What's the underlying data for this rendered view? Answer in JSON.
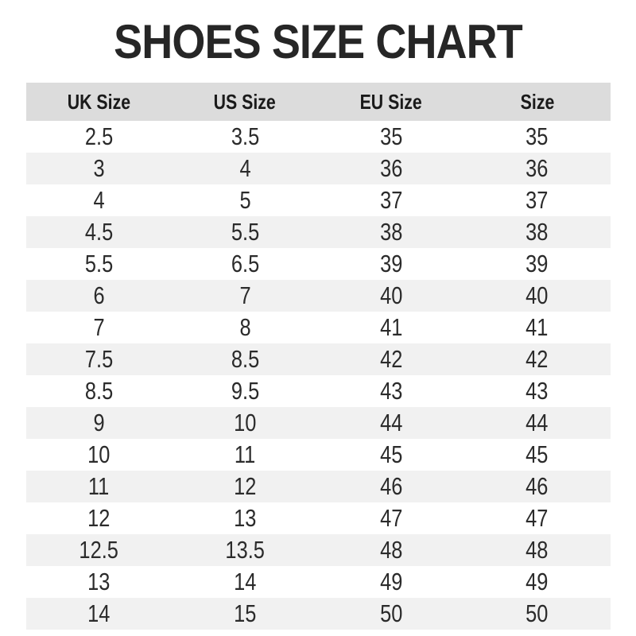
{
  "title": "SHOES SIZE CHART",
  "chart_data": {
    "type": "table",
    "title": "SHOES SIZE CHART",
    "columns": [
      "UK Size",
      "US Size",
      "EU Size",
      "Size"
    ],
    "rows": [
      [
        "2.5",
        "3.5",
        "35",
        "35"
      ],
      [
        "3",
        "4",
        "36",
        "36"
      ],
      [
        "4",
        "5",
        "37",
        "37"
      ],
      [
        "4.5",
        "5.5",
        "38",
        "38"
      ],
      [
        "5.5",
        "6.5",
        "39",
        "39"
      ],
      [
        "6",
        "7",
        "40",
        "40"
      ],
      [
        "7",
        "8",
        "41",
        "41"
      ],
      [
        "7.5",
        "8.5",
        "42",
        "42"
      ],
      [
        "8.5",
        "9.5",
        "43",
        "43"
      ],
      [
        "9",
        "10",
        "44",
        "44"
      ],
      [
        "10",
        "11",
        "45",
        "45"
      ],
      [
        "11",
        "12",
        "46",
        "46"
      ],
      [
        "12",
        "13",
        "47",
        "47"
      ],
      [
        "12.5",
        "13.5",
        "48",
        "48"
      ],
      [
        "13",
        "14",
        "49",
        "49"
      ],
      [
        "14",
        "15",
        "50",
        "50"
      ]
    ],
    "layout": {
      "striped_rows": true,
      "stripe_pattern": "even rows shaded"
    }
  },
  "colors": {
    "title": "#262626",
    "header_bg": "#dcdcdc",
    "stripe_bg": "#f1f1f1",
    "row_bg": "#ffffff",
    "body_text": "#2b2b2b"
  }
}
